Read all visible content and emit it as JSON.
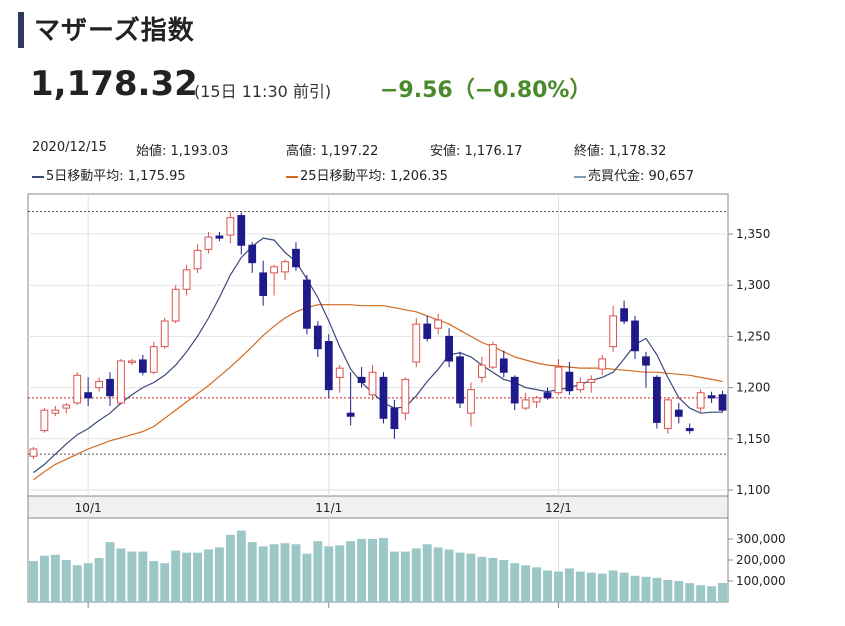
{
  "header": {
    "title": "マザーズ指数",
    "price": "1,178.32",
    "asof": "(15日 11:30 前引)",
    "change": "−9.56（−0.80%）"
  },
  "info": {
    "date": "2020/12/15",
    "open": "始値: 1,193.03",
    "high": "高値: 1,197.22",
    "low": "安値: 1,176.17",
    "close": "終値: 1,178.32",
    "ma5": "5日移動平均: 1,175.95",
    "ma25": "25日移動平均: 1,206.35",
    "volume": "売買代金: 90,657"
  },
  "colors": {
    "up": "#d9534f",
    "down": "#1f1a8a",
    "ma5": "#3a4a7a",
    "ma25": "#d2691e",
    "volume": "#9cc7c7",
    "ref": "#cc2222"
  },
  "chart_data": [
    {
      "type": "candlestick",
      "title": "",
      "x_ticks": [
        "10/1",
        "11/1",
        "12/1"
      ],
      "y_ticks": [
        "1,350",
        "1,300",
        "1,250",
        "1,200",
        "1,150",
        "1,100"
      ],
      "ylim": [
        1100,
        1350
      ],
      "ohlc": [
        [
          1133,
          1142,
          1130,
          1140
        ],
        [
          1158,
          1180,
          1156,
          1178
        ],
        [
          1175,
          1182,
          1172,
          1178
        ],
        [
          1180,
          1185,
          1175,
          1183
        ],
        [
          1185,
          1215,
          1183,
          1212
        ],
        [
          1195,
          1210,
          1182,
          1190
        ],
        [
          1200,
          1210,
          1196,
          1206
        ],
        [
          1208,
          1215,
          1182,
          1192
        ],
        [
          1185,
          1228,
          1183,
          1226
        ],
        [
          1225,
          1228,
          1222,
          1226
        ],
        [
          1227,
          1232,
          1212,
          1215
        ],
        [
          1215,
          1245,
          1213,
          1240
        ],
        [
          1240,
          1268,
          1238,
          1265
        ],
        [
          1265,
          1300,
          1263,
          1296
        ],
        [
          1296,
          1320,
          1290,
          1315
        ],
        [
          1316,
          1340,
          1312,
          1334
        ],
        [
          1335,
          1352,
          1331,
          1347
        ],
        [
          1348,
          1352,
          1343,
          1346
        ],
        [
          1349,
          1372,
          1341,
          1366
        ],
        [
          1368,
          1371,
          1330,
          1339
        ],
        [
          1339,
          1342,
          1312,
          1322
        ],
        [
          1312,
          1324,
          1280,
          1290
        ],
        [
          1312,
          1320,
          1290,
          1318
        ],
        [
          1313,
          1325,
          1305,
          1323
        ],
        [
          1335,
          1342,
          1314,
          1318
        ],
        [
          1305,
          1310,
          1252,
          1258
        ],
        [
          1260,
          1265,
          1230,
          1238
        ],
        [
          1245,
          1252,
          1190,
          1198
        ],
        [
          1210,
          1222,
          1195,
          1219
        ],
        [
          1175,
          1215,
          1163,
          1172
        ],
        [
          1210,
          1220,
          1200,
          1205
        ],
        [
          1193,
          1222,
          1188,
          1215
        ],
        [
          1210,
          1215,
          1165,
          1170
        ],
        [
          1180,
          1188,
          1150,
          1160
        ],
        [
          1175,
          1210,
          1168,
          1208
        ],
        [
          1225,
          1268,
          1220,
          1262
        ],
        [
          1262,
          1270,
          1245,
          1248
        ],
        [
          1258,
          1272,
          1252,
          1266
        ],
        [
          1250,
          1258,
          1220,
          1226
        ],
        [
          1230,
          1235,
          1180,
          1185
        ],
        [
          1175,
          1205,
          1162,
          1198
        ],
        [
          1210,
          1230,
          1205,
          1222
        ],
        [
          1220,
          1245,
          1218,
          1242
        ],
        [
          1228,
          1236,
          1210,
          1215
        ],
        [
          1210,
          1212,
          1178,
          1185
        ],
        [
          1180,
          1195,
          1178,
          1188
        ],
        [
          1186,
          1192,
          1180,
          1190
        ],
        [
          1195,
          1200,
          1188,
          1190
        ],
        [
          1195,
          1228,
          1193,
          1220
        ],
        [
          1215,
          1225,
          1193,
          1197
        ],
        [
          1198,
          1210,
          1195,
          1205
        ],
        [
          1205,
          1212,
          1195,
          1208
        ],
        [
          1218,
          1232,
          1212,
          1228
        ],
        [
          1240,
          1280,
          1235,
          1270
        ],
        [
          1277,
          1285,
          1262,
          1265
        ],
        [
          1265,
          1270,
          1228,
          1236
        ],
        [
          1230,
          1235,
          1200,
          1222
        ],
        [
          1210,
          1212,
          1160,
          1166
        ],
        [
          1160,
          1190,
          1155,
          1188
        ],
        [
          1178,
          1185,
          1165,
          1172
        ],
        [
          1160,
          1165,
          1155,
          1158
        ],
        [
          1180,
          1198,
          1175,
          1195
        ],
        [
          1192,
          1196,
          1185,
          1190
        ],
        [
          1193,
          1197,
          1176,
          1178
        ]
      ],
      "ma5": [
        1117,
        1125,
        1135,
        1145,
        1154,
        1160,
        1168,
        1175,
        1185,
        1193,
        1200,
        1205,
        1212,
        1222,
        1235,
        1250,
        1268,
        1288,
        1310,
        1327,
        1338,
        1346,
        1344,
        1332,
        1323,
        1306,
        1288,
        1265,
        1240,
        1218,
        1205,
        1195,
        1185,
        1180,
        1181,
        1192,
        1206,
        1218,
        1232,
        1234,
        1230,
        1222,
        1215,
        1208,
        1205,
        1200,
        1198,
        1196,
        1198,
        1200,
        1203,
        1207,
        1210,
        1215,
        1228,
        1242,
        1248,
        1232,
        1210,
        1190,
        1180,
        1175,
        1176,
        1176
      ],
      "ma25": [
        1110,
        1118,
        1125,
        1130,
        1135,
        1140,
        1144,
        1148,
        1151,
        1154,
        1157,
        1162,
        1170,
        1178,
        1186,
        1194,
        1202,
        1211,
        1220,
        1230,
        1240,
        1251,
        1260,
        1268,
        1274,
        1278,
        1281,
        1281,
        1281,
        1281,
        1280,
        1280,
        1280,
        1278,
        1276,
        1274,
        1270,
        1266,
        1262,
        1256,
        1250,
        1244,
        1240,
        1235,
        1230,
        1227,
        1224,
        1222,
        1221,
        1220,
        1219,
        1219,
        1219,
        1218,
        1217,
        1216,
        1215,
        1215,
        1214,
        1213,
        1212,
        1210,
        1208,
        1206
      ],
      "ref_lines": [
        1372,
        1135
      ],
      "last_line": 1190
    },
    {
      "type": "bar",
      "title": "売買代金",
      "y_ticks": [
        "300,000",
        "200,000",
        "100,000"
      ],
      "ylim": [
        0,
        400000
      ],
      "values": [
        195000,
        220000,
        225000,
        200000,
        175000,
        185000,
        210000,
        285000,
        255000,
        240000,
        240000,
        195000,
        185000,
        245000,
        235000,
        235000,
        250000,
        260000,
        320000,
        340000,
        285000,
        265000,
        275000,
        280000,
        275000,
        230000,
        290000,
        265000,
        270000,
        290000,
        300000,
        300000,
        305000,
        240000,
        240000,
        255000,
        275000,
        260000,
        250000,
        235000,
        230000,
        215000,
        210000,
        200000,
        185000,
        175000,
        165000,
        150000,
        145000,
        160000,
        145000,
        140000,
        135000,
        150000,
        140000,
        125000,
        120000,
        115000,
        105000,
        100000,
        90000,
        80000,
        75000,
        90657
      ]
    }
  ]
}
